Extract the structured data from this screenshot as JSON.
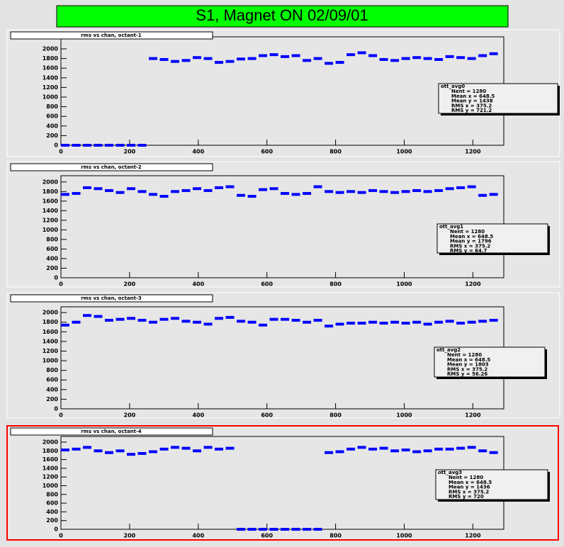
{
  "title": "S1, Magnet ON 02/09/01",
  "chart_data": [
    {
      "type": "scatter",
      "title": "rms vs chan, octant-1",
      "color": "#0000ff",
      "xlim": [
        0,
        1290
      ],
      "xticks": [
        0,
        200,
        400,
        600,
        800,
        1000,
        1200
      ],
      "ylim": [
        0,
        2250
      ],
      "yticks": [
        0,
        200,
        400,
        600,
        800,
        1000,
        1200,
        1400,
        1600,
        1800,
        2000
      ],
      "x": [
        0,
        32,
        64,
        96,
        128,
        160,
        192,
        224,
        256,
        288,
        320,
        352,
        384,
        416,
        448,
        480,
        512,
        544,
        576,
        608,
        640,
        672,
        704,
        736,
        768,
        800,
        832,
        864,
        896,
        928,
        960,
        992,
        1024,
        1056,
        1088,
        1120,
        1152,
        1184,
        1216,
        1248
      ],
      "values": [
        0,
        0,
        0,
        0,
        0,
        0,
        0,
        0,
        1800,
        1780,
        1740,
        1760,
        1820,
        1800,
        1720,
        1740,
        1790,
        1800,
        1860,
        1880,
        1840,
        1860,
        1760,
        1800,
        1700,
        1720,
        1880,
        1920,
        1860,
        1780,
        1760,
        1800,
        1820,
        1800,
        1780,
        1840,
        1820,
        1800,
        1860,
        1900
      ],
      "stats": {
        "name": "ott_avg0",
        "entries": [
          "Nent = 1280",
          "Mean x = 648.5",
          "Mean y = 1438",
          "RMS x = 375.2",
          "RMS y = 721.2"
        ]
      }
    },
    {
      "type": "scatter",
      "title": "rms vs chan, octant-2",
      "color": "#0000ff",
      "xlim": [
        0,
        1290
      ],
      "xticks": [
        0,
        200,
        400,
        600,
        800,
        1000,
        1200
      ],
      "ylim": [
        0,
        2130
      ],
      "yticks": [
        0,
        200,
        400,
        600,
        800,
        1000,
        1200,
        1400,
        1600,
        1800,
        2000
      ],
      "x": [
        0,
        32,
        64,
        96,
        128,
        160,
        192,
        224,
        256,
        288,
        320,
        352,
        384,
        416,
        448,
        480,
        512,
        544,
        576,
        608,
        640,
        672,
        704,
        736,
        768,
        800,
        832,
        864,
        896,
        928,
        960,
        992,
        1024,
        1056,
        1088,
        1120,
        1152,
        1184,
        1216,
        1248
      ],
      "values": [
        1740,
        1760,
        1880,
        1860,
        1820,
        1780,
        1860,
        1800,
        1740,
        1700,
        1800,
        1820,
        1860,
        1820,
        1880,
        1900,
        1720,
        1700,
        1840,
        1860,
        1760,
        1740,
        1760,
        1900,
        1800,
        1780,
        1800,
        1780,
        1820,
        1800,
        1780,
        1800,
        1820,
        1800,
        1820,
        1860,
        1880,
        1900,
        1720,
        1740
      ],
      "stats": {
        "name": "ott_avg1",
        "entries": [
          "Nent = 1280",
          "Mean x = 648.5",
          "Mean y = 1796",
          "RMS x = 375.2",
          "RMS y = 64.7"
        ]
      }
    },
    {
      "type": "scatter",
      "title": "rms vs chan, octant-3",
      "color": "#0000ff",
      "xlim": [
        0,
        1290
      ],
      "xticks": [
        0,
        200,
        400,
        600,
        800,
        1000,
        1200
      ],
      "ylim": [
        0,
        2120
      ],
      "yticks": [
        0,
        200,
        400,
        600,
        800,
        1000,
        1200,
        1400,
        1600,
        1800,
        2000
      ],
      "x": [
        0,
        32,
        64,
        96,
        128,
        160,
        192,
        224,
        256,
        288,
        320,
        352,
        384,
        416,
        448,
        480,
        512,
        544,
        576,
        608,
        640,
        672,
        704,
        736,
        768,
        800,
        832,
        864,
        896,
        928,
        960,
        992,
        1024,
        1056,
        1088,
        1120,
        1152,
        1184,
        1216,
        1248
      ],
      "values": [
        1740,
        1800,
        1940,
        1920,
        1840,
        1860,
        1880,
        1840,
        1800,
        1860,
        1880,
        1820,
        1800,
        1760,
        1880,
        1900,
        1820,
        1800,
        1740,
        1860,
        1860,
        1840,
        1800,
        1840,
        1720,
        1760,
        1780,
        1780,
        1800,
        1780,
        1800,
        1780,
        1800,
        1760,
        1800,
        1820,
        1780,
        1800,
        1820,
        1840
      ],
      "stats": {
        "name": "ott_avg2",
        "entries": [
          "Nent = 1280",
          "Mean x = 648.5",
          "Mean y = 1803",
          "RMS x = 375.2",
          "RMS y = 56.26"
        ]
      }
    },
    {
      "type": "scatter",
      "title": "rms vs chan, octant-4",
      "color": "#0000ff",
      "xlim": [
        0,
        1290
      ],
      "xticks": [
        0,
        200,
        400,
        600,
        800,
        1000,
        1200
      ],
      "ylim": [
        0,
        2130
      ],
      "yticks": [
        0,
        200,
        400,
        600,
        800,
        1000,
        1200,
        1400,
        1600,
        1800,
        2000
      ],
      "x": [
        0,
        32,
        64,
        96,
        128,
        160,
        192,
        224,
        256,
        288,
        320,
        352,
        384,
        416,
        448,
        480,
        512,
        544,
        576,
        608,
        640,
        672,
        704,
        736,
        768,
        800,
        832,
        864,
        896,
        928,
        960,
        992,
        1024,
        1056,
        1088,
        1120,
        1152,
        1184,
        1216,
        1248
      ],
      "values": [
        1820,
        1840,
        1880,
        1800,
        1760,
        1800,
        1720,
        1740,
        1780,
        1840,
        1880,
        1860,
        1800,
        1880,
        1840,
        1860,
        0,
        0,
        0,
        0,
        0,
        0,
        0,
        0,
        1760,
        1780,
        1840,
        1880,
        1840,
        1860,
        1800,
        1820,
        1780,
        1800,
        1840,
        1840,
        1860,
        1880,
        1800,
        1760
      ],
      "stats": {
        "name": "ott_avg3",
        "entries": [
          "Nent = 1280",
          "Mean x = 648.5",
          "Mean y = 1436",
          "RMS x = 375.2",
          "RMS y = 720"
        ]
      }
    }
  ]
}
